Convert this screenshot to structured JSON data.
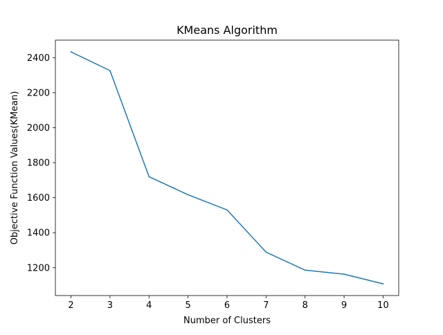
{
  "chart_data": {
    "type": "line",
    "title": "KMeans Algorithm",
    "xlabel": "Number of Clusters",
    "ylabel": "Objective Function Values(KMean)",
    "x": [
      2,
      3,
      4,
      5,
      6,
      7,
      8,
      9,
      10
    ],
    "series": [
      {
        "values": [
          2433,
          2326,
          1720,
          1617,
          1530,
          1289,
          1186,
          1163,
          1108
        ],
        "color": "#1f77b4"
      }
    ],
    "xticks": [
      2,
      3,
      4,
      5,
      6,
      7,
      8,
      9,
      10
    ],
    "yticks": [
      1200,
      1400,
      1600,
      1800,
      2000,
      2200,
      2400
    ],
    "xlim": [
      1.6,
      10.4
    ],
    "ylim": [
      1041,
      2500
    ],
    "grid": false
  }
}
